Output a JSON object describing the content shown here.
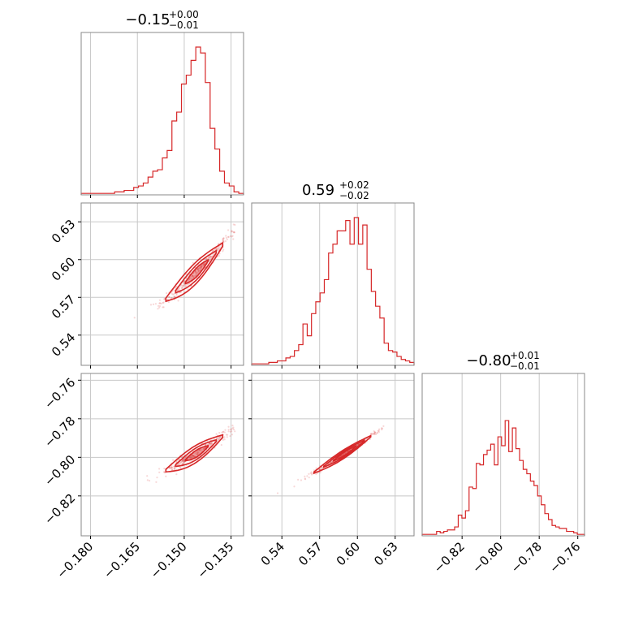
{
  "chart_data": {
    "type": "corner",
    "color": "#d62728",
    "parameters": [
      {
        "title": {
          "main": "−0.15",
          "sup": "+0.00",
          "sub": "−0.01"
        },
        "range": [
          -0.183,
          -0.131
        ],
        "ticks": [
          -0.18,
          -0.165,
          -0.15,
          -0.135
        ],
        "tick_labels": [
          "−0.180",
          "−0.165",
          "−0.150",
          "−0.135"
        ],
        "median": -0.146,
        "hist_weights": [
          0.01,
          0.01,
          0.01,
          0.01,
          0.01,
          0.01,
          0.01,
          0.02,
          0.02,
          0.03,
          0.03,
          0.05,
          0.06,
          0.08,
          0.12,
          0.16,
          0.17,
          0.25,
          0.3,
          0.5,
          0.56,
          0.75,
          0.81,
          0.91,
          1.0,
          0.96,
          0.76,
          0.45,
          0.31,
          0.16,
          0.08,
          0.06,
          0.02,
          0.01
        ]
      },
      {
        "title": {
          "main": "0.59",
          "sup": "+0.02",
          "sub": "−0.02"
        },
        "range": [
          0.516,
          0.645
        ],
        "ticks": [
          0.54,
          0.57,
          0.6,
          0.63
        ],
        "tick_labels": [
          "0.54",
          "0.57",
          "0.60",
          "0.63"
        ],
        "median": 0.59,
        "hist_weights": [
          0.01,
          0.01,
          0.01,
          0.01,
          0.02,
          0.02,
          0.03,
          0.03,
          0.05,
          0.06,
          0.1,
          0.14,
          0.28,
          0.2,
          0.35,
          0.43,
          0.49,
          0.58,
          0.76,
          0.82,
          0.91,
          0.91,
          0.98,
          0.82,
          1.0,
          0.82,
          0.95,
          0.65,
          0.5,
          0.4,
          0.32,
          0.15,
          0.1,
          0.09,
          0.06,
          0.04,
          0.03,
          0.02
        ]
      },
      {
        "title": {
          "main": "−0.80",
          "sup": "+0.01",
          "sub": "−0.01"
        },
        "range": [
          -0.8407,
          -0.7565
        ],
        "ticks": [
          -0.82,
          -0.8,
          -0.78,
          -0.76
        ],
        "tick_labels": [
          "−0.82",
          "−0.80",
          "−0.78",
          "−0.76"
        ],
        "median": -0.798,
        "hist_weights": [
          0.01,
          0.01,
          0.01,
          0.01,
          0.03,
          0.02,
          0.03,
          0.04,
          0.04,
          0.06,
          0.14,
          0.12,
          0.17,
          0.33,
          0.32,
          0.49,
          0.48,
          0.55,
          0.58,
          0.62,
          0.48,
          0.67,
          0.61,
          0.78,
          0.57,
          0.73,
          0.59,
          0.51,
          0.45,
          0.42,
          0.37,
          0.34,
          0.27,
          0.21,
          0.15,
          0.11,
          0.07,
          0.06,
          0.05,
          0.05,
          0.03,
          0.03,
          0.02,
          0.01,
          0.01
        ]
      }
    ],
    "correlations": [
      {
        "x": 0,
        "y": 1,
        "slope": 2.45,
        "curvature": 24,
        "spread": 0.0027
      },
      {
        "x": 0,
        "y": 2,
        "slope": 1.0,
        "curvature": 10,
        "spread": 0.0014
      },
      {
        "x": 1,
        "y": 2,
        "slope": 0.42,
        "curvature": 0.6,
        "spread": 0.0007
      }
    ],
    "grid": true
  }
}
